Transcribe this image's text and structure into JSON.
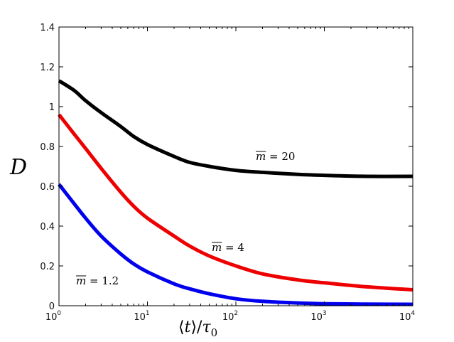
{
  "chart_data": {
    "type": "line",
    "xscale": "log",
    "xlim": [
      1,
      10000
    ],
    "ylim": [
      0,
      1.4
    ],
    "grid": false,
    "xlabel_parts": {
      "open": "⟨",
      "var": "t",
      "close": "⟩",
      "slash": "/",
      "tau": "τ",
      "sub": "0"
    },
    "ylabel": "D",
    "xticks": [
      {
        "value": 1,
        "base": "10",
        "exp": "0"
      },
      {
        "value": 10,
        "base": "10",
        "exp": "1"
      },
      {
        "value": 100,
        "base": "10",
        "exp": "2"
      },
      {
        "value": 1000,
        "base": "10",
        "exp": "3"
      },
      {
        "value": 10000,
        "base": "10",
        "exp": "4"
      }
    ],
    "yticks": [
      "0",
      "0.2",
      "0.4",
      "0.6",
      "0.8",
      "1",
      "1.2",
      "1.4"
    ],
    "series": [
      {
        "label_m": "m",
        "label_eq": " = 20",
        "color": "#000000",
        "x": [
          1,
          1.5,
          2,
          3,
          5,
          7,
          10,
          20,
          30,
          50,
          100,
          200,
          500,
          1000,
          3000,
          10000
        ],
        "y": [
          1.13,
          1.08,
          1.03,
          0.97,
          0.9,
          0.85,
          0.81,
          0.75,
          0.72,
          0.7,
          0.68,
          0.67,
          0.66,
          0.655,
          0.65,
          0.65
        ]
      },
      {
        "label_m": "m",
        "label_eq": " = 4",
        "color": "#ee0000",
        "x": [
          1,
          1.5,
          2,
          3,
          5,
          7,
          10,
          20,
          30,
          50,
          100,
          200,
          500,
          1000,
          3000,
          10000
        ],
        "y": [
          0.96,
          0.86,
          0.79,
          0.69,
          0.57,
          0.5,
          0.44,
          0.35,
          0.3,
          0.25,
          0.2,
          0.16,
          0.13,
          0.115,
          0.095,
          0.08
        ]
      },
      {
        "label_m": "m",
        "label_eq": " = 1.2",
        "color": "#0000ee",
        "x": [
          1,
          1.5,
          2,
          3,
          5,
          7,
          10,
          20,
          30,
          50,
          100,
          200,
          500,
          1000,
          3000,
          10000
        ],
        "y": [
          0.61,
          0.51,
          0.44,
          0.35,
          0.26,
          0.21,
          0.17,
          0.11,
          0.085,
          0.06,
          0.035,
          0.022,
          0.014,
          0.01,
          0.008,
          0.007
        ]
      }
    ]
  }
}
